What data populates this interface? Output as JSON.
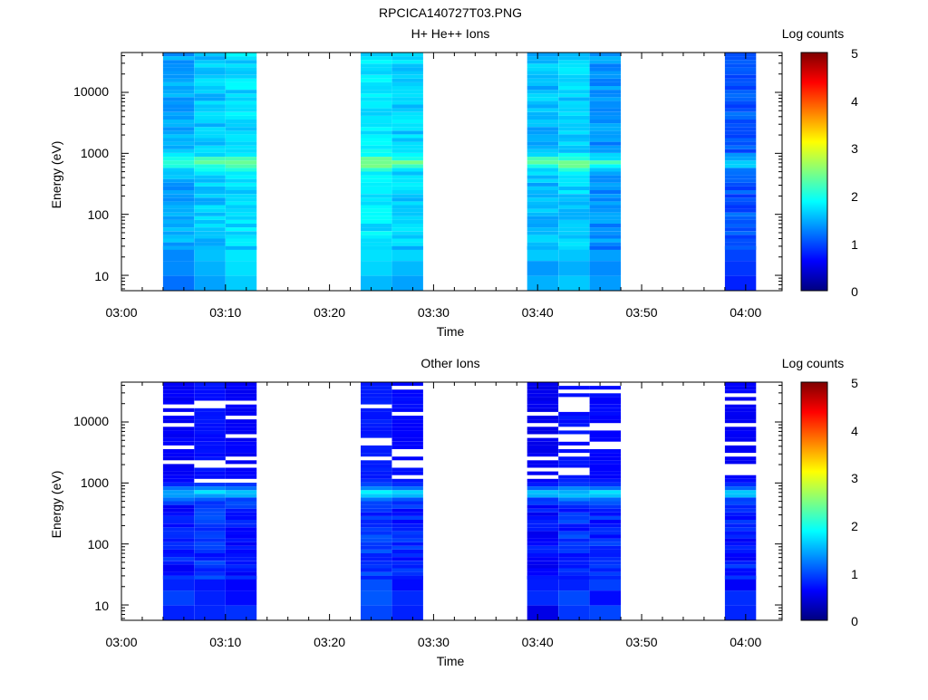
{
  "figure_title": "RPCICA140727T03.PNG",
  "chart_data": [
    {
      "type": "heatmap",
      "title": "H+ He++ Ions",
      "xlabel": "Time",
      "ylabel": "Energy (eV)",
      "x_ticks": [
        "03:00",
        "03:10",
        "03:20",
        "03:30",
        "03:40",
        "03:50",
        "04:00"
      ],
      "y_ticks": [
        "10",
        "100",
        "1000",
        "10000"
      ],
      "y_scale": "log",
      "colorbar": {
        "label": "Log counts",
        "range": [
          0,
          5
        ],
        "ticks": [
          "0",
          "1",
          "2",
          "3",
          "4",
          "5"
        ]
      },
      "blocks": [
        {
          "start": "03:04",
          "end": "03:07",
          "profile": "h",
          "shift": 0.0
        },
        {
          "start": "03:07",
          "end": "03:10",
          "profile": "h",
          "shift": 0.15
        },
        {
          "start": "03:10",
          "end": "03:13",
          "profile": "h",
          "shift": 0.25
        },
        {
          "start": "03:23",
          "end": "03:26",
          "profile": "h",
          "shift": 0.3
        },
        {
          "start": "03:26",
          "end": "03:29",
          "profile": "h",
          "shift": 0.2
        },
        {
          "start": "03:39",
          "end": "03:42",
          "profile": "h",
          "shift": 0.1
        },
        {
          "start": "03:42",
          "end": "03:45",
          "profile": "h",
          "shift": 0.2
        },
        {
          "start": "03:45",
          "end": "03:48",
          "profile": "h",
          "shift": -0.1
        },
        {
          "start": "03:58",
          "end": "04:01",
          "profile": "h",
          "shift": -0.4
        }
      ]
    },
    {
      "type": "heatmap",
      "title": "Other Ions",
      "xlabel": "Time",
      "ylabel": "Energy (eV)",
      "x_ticks": [
        "03:00",
        "03:10",
        "03:20",
        "03:30",
        "03:40",
        "03:50",
        "04:00"
      ],
      "y_ticks": [
        "10",
        "100",
        "1000",
        "10000"
      ],
      "y_scale": "log",
      "colorbar": {
        "label": "Log counts",
        "range": [
          0,
          5
        ],
        "ticks": [
          "0",
          "1",
          "2",
          "3",
          "4",
          "5"
        ]
      },
      "blocks": [
        {
          "start": "03:04",
          "end": "03:07",
          "profile": "o",
          "shift": 0.0
        },
        {
          "start": "03:07",
          "end": "03:10",
          "profile": "o",
          "shift": 0.1
        },
        {
          "start": "03:10",
          "end": "03:13",
          "profile": "o",
          "shift": 0.0
        },
        {
          "start": "03:23",
          "end": "03:26",
          "profile": "o",
          "shift": 0.15
        },
        {
          "start": "03:26",
          "end": "03:29",
          "profile": "o",
          "shift": 0.05
        },
        {
          "start": "03:39",
          "end": "03:42",
          "profile": "o",
          "shift": -0.05
        },
        {
          "start": "03:42",
          "end": "03:45",
          "profile": "o",
          "shift": 0.1
        },
        {
          "start": "03:45",
          "end": "03:48",
          "profile": "o",
          "shift": 0.05
        },
        {
          "start": "03:58",
          "end": "04:01",
          "profile": "o",
          "shift": 0.0
        }
      ]
    }
  ]
}
